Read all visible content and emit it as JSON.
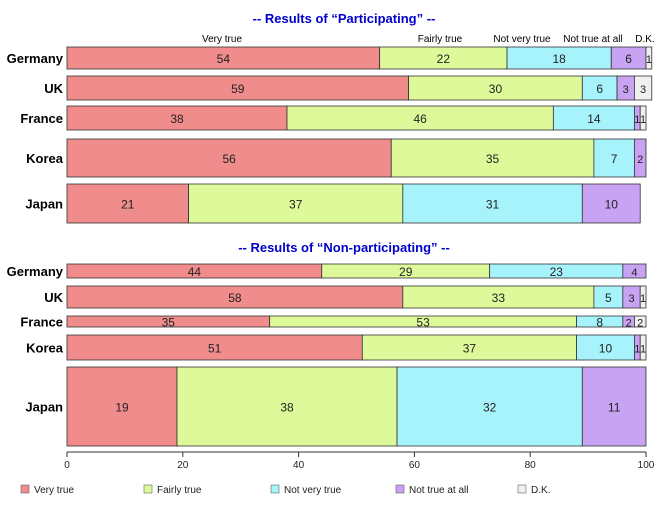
{
  "colors": {
    "very_true": "#f08c8c",
    "fairly_true": "#ddf99a",
    "not_very_true": "#a6f3fb",
    "not_true_at_all": "#c9a3f3",
    "dk": "#f0f0f0",
    "title": "#0000cc"
  },
  "chart_data": [
    {
      "type": "bar",
      "orientation": "horizontal",
      "stacked": true,
      "title": "-- Results of “Participating” --",
      "categories": [
        "Germany",
        "UK",
        "France",
        "Korea",
        "Japan"
      ],
      "series": [
        {
          "name": "Very true",
          "values": [
            54,
            59,
            38,
            56,
            21
          ]
        },
        {
          "name": "Fairly true",
          "values": [
            22,
            30,
            46,
            35,
            37
          ]
        },
        {
          "name": "Not very true",
          "values": [
            18,
            6,
            14,
            7,
            31
          ]
        },
        {
          "name": "Not true at all",
          "values": [
            6,
            3,
            1,
            2,
            10
          ]
        },
        {
          "name": "D.K.",
          "values": [
            1,
            3,
            1,
            0,
            0
          ]
        }
      ],
      "series_labels_top": [
        "Very true",
        "Fairly true",
        "Not very true",
        "Not true at all",
        "D.K."
      ],
      "xlim": [
        0,
        100
      ],
      "grid": false
    },
    {
      "type": "bar",
      "orientation": "horizontal",
      "stacked": true,
      "title": "-- Results of “Non-participating” --",
      "categories": [
        "Germany",
        "UK",
        "France",
        "Korea",
        "Japan"
      ],
      "series": [
        {
          "name": "Very true",
          "values": [
            44,
            58,
            35,
            51,
            19
          ]
        },
        {
          "name": "Fairly true",
          "values": [
            29,
            33,
            53,
            37,
            38
          ]
        },
        {
          "name": "Not very true",
          "values": [
            23,
            5,
            8,
            10,
            32
          ]
        },
        {
          "name": "Not true at all",
          "values": [
            4,
            3,
            2,
            1,
            11
          ]
        },
        {
          "name": "D.K.",
          "values": [
            0,
            1,
            2,
            1,
            0
          ]
        }
      ],
      "xlim": [
        0,
        100
      ],
      "xticks": [
        0,
        20,
        40,
        60,
        80,
        100
      ],
      "grid": false
    }
  ],
  "legend": {
    "placement": "bottom",
    "items": [
      "Very true",
      "Fairly true",
      "Not very true",
      "Not true at all",
      "D.K."
    ]
  }
}
